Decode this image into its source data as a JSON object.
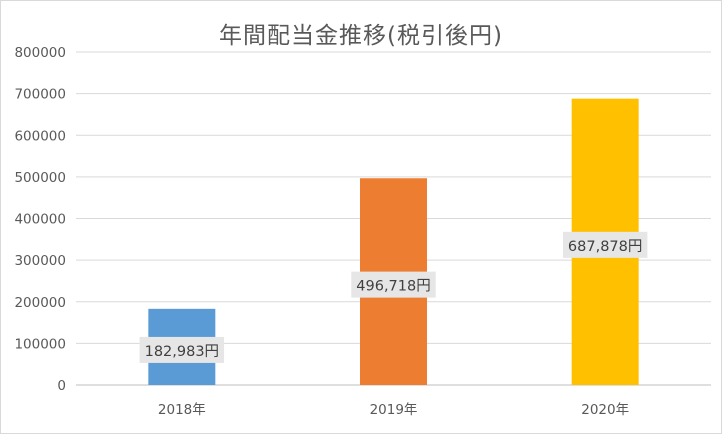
{
  "chart_data": {
    "type": "bar",
    "title": "年間配当金推移(税引後円)",
    "categories": [
      "2018年",
      "2019年",
      "2020年"
    ],
    "values": [
      182983,
      496718,
      687878
    ],
    "data_labels": [
      "182,983円",
      "496,718円",
      "687,878円"
    ],
    "colors": [
      "#5b9bd5",
      "#ed7d31",
      "#ffc000"
    ],
    "ylim": [
      0,
      800000
    ],
    "yticks": [
      "0",
      "100000",
      "200000",
      "300000",
      "400000",
      "500000",
      "600000",
      "700000",
      "800000"
    ],
    "grid": true,
    "legend": "none"
  }
}
